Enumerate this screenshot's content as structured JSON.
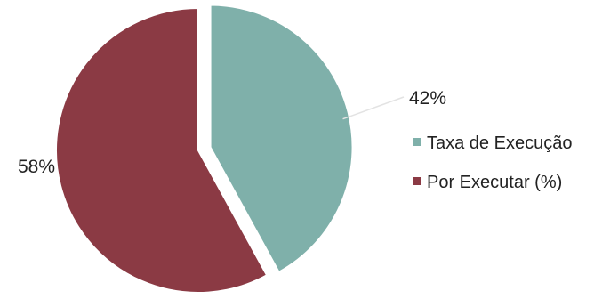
{
  "chart_data": {
    "type": "pie",
    "title": "",
    "slices": [
      {
        "name": "Taxa de Execução",
        "value": 42,
        "label": "42%",
        "color": "#7fb0aa"
      },
      {
        "name": "Por Executar (%)",
        "value": 58,
        "label": "58%",
        "color": "#8b3a44"
      }
    ],
    "exploded_slice": "Taxa de Execução",
    "legend_position": "right"
  }
}
